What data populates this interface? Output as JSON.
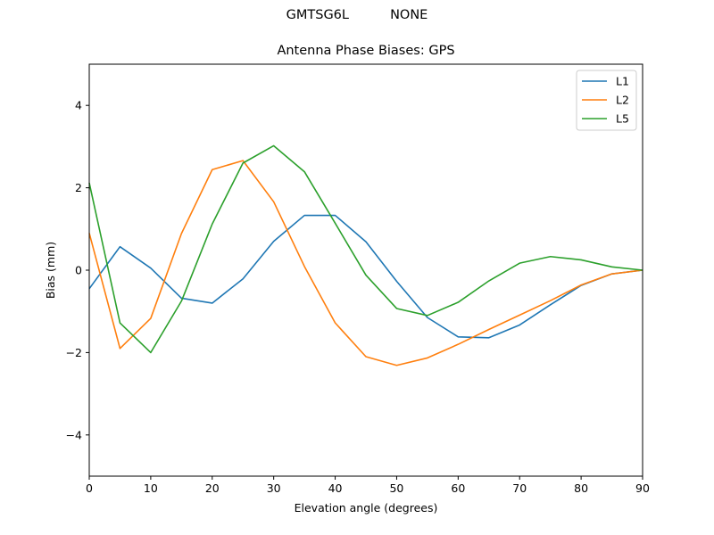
{
  "figure": {
    "suptitle": "GMTSG6L          NONE"
  },
  "chart_data": {
    "type": "line",
    "title": "Antenna Phase Biases: GPS",
    "xlabel": "Elevation angle (degrees)",
    "ylabel": "Bias (mm)",
    "xlim": [
      0,
      90
    ],
    "ylim": [
      -5,
      5
    ],
    "xticks": [
      0,
      10,
      20,
      30,
      40,
      50,
      60,
      70,
      80,
      90
    ],
    "yticks": [
      -4,
      -2,
      0,
      2,
      4
    ],
    "ytick_labels": [
      "−4",
      "−2",
      "0",
      "2",
      "4"
    ],
    "x": [
      0,
      5,
      10,
      15,
      20,
      25,
      30,
      35,
      40,
      45,
      50,
      55,
      60,
      65,
      70,
      75,
      80,
      85,
      90
    ],
    "series": [
      {
        "name": "L1",
        "color": "#1f77b4",
        "values": [
          -0.45,
          0.57,
          0.05,
          -0.68,
          -0.8,
          -0.21,
          0.7,
          1.33,
          1.33,
          0.69,
          -0.27,
          -1.15,
          -1.62,
          -1.64,
          -1.33,
          -0.84,
          -0.37,
          -0.09,
          0.0
        ]
      },
      {
        "name": "L2",
        "color": "#ff7f0e",
        "values": [
          0.9,
          -1.9,
          -1.17,
          0.89,
          2.44,
          2.66,
          1.66,
          0.09,
          -1.28,
          -2.1,
          -2.31,
          -2.13,
          -1.8,
          -1.44,
          -1.09,
          -0.74,
          -0.36,
          -0.09,
          0.0
        ]
      },
      {
        "name": "L5",
        "color": "#2ca02c",
        "values": [
          2.12,
          -1.28,
          -2.0,
          -0.75,
          1.12,
          2.6,
          3.02,
          2.39,
          1.14,
          -0.12,
          -0.93,
          -1.1,
          -0.78,
          -0.26,
          0.17,
          0.33,
          0.25,
          0.08,
          0.0
        ]
      }
    ],
    "legend": "top-right",
    "grid": false
  }
}
